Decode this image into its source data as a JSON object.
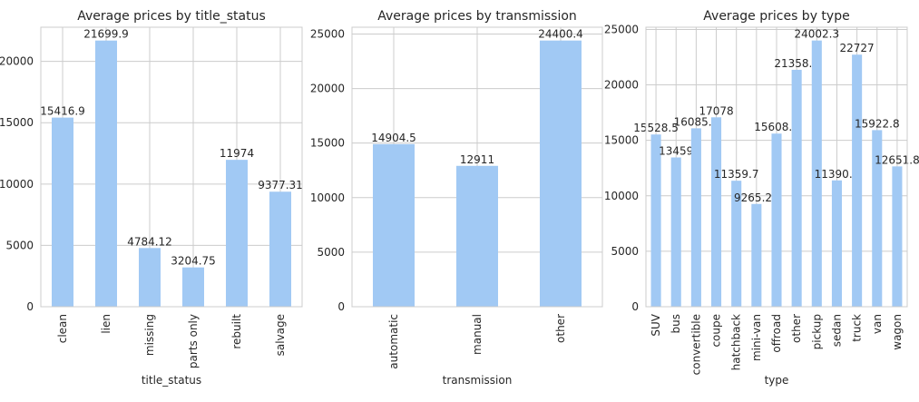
{
  "colors": {
    "bar": "#a1c9f4",
    "grid": "#cccccc",
    "spine": "#cccccc",
    "text": "#262626"
  },
  "chart_data": [
    {
      "type": "bar",
      "title": "Average prices by title_status",
      "xlabel": "title_status",
      "ylabel": "",
      "grid": true,
      "categories": [
        "clean",
        "lien",
        "missing",
        "parts only",
        "rebuilt",
        "salvage"
      ],
      "values": [
        15416.9,
        21699.9,
        4784.12,
        3204.75,
        11974,
        9377.31
      ],
      "value_labels": [
        "15416.9",
        "21699.9",
        "4784.12",
        "3204.75",
        "11974",
        "9377.31"
      ],
      "ylim": [
        0,
        22785
      ],
      "yticks": [
        0,
        5000,
        10000,
        15000,
        20000
      ]
    },
    {
      "type": "bar",
      "title": "Average prices by transmission",
      "xlabel": "transmission",
      "ylabel": "",
      "grid": true,
      "categories": [
        "automatic",
        "manual",
        "other"
      ],
      "values": [
        14904.5,
        12911,
        24400.4
      ],
      "value_labels": [
        "14904.5",
        "12911",
        "24400.4"
      ],
      "ylim": [
        0,
        25620
      ],
      "yticks": [
        0,
        5000,
        10000,
        15000,
        20000,
        25000
      ]
    },
    {
      "type": "bar",
      "title": "Average prices by type",
      "xlabel": "type",
      "ylabel": "",
      "grid": true,
      "categories": [
        "SUV",
        "bus",
        "convertible",
        "coupe",
        "hatchback",
        "mini-van",
        "offroad",
        "other",
        "pickup",
        "sedan",
        "truck",
        "van",
        "wagon"
      ],
      "values": [
        15528.5,
        13459,
        16085.6,
        17078,
        11359.7,
        9265.21,
        15608.5,
        21358.5,
        24002.3,
        11390.9,
        22727,
        15922.8,
        12651.8
      ],
      "value_labels": [
        "15528.5",
        "13459",
        "16085.6",
        "17078",
        "11359.7",
        "9265.21",
        "15608.5",
        "21358.5",
        "24002.3",
        "11390.9",
        "22727",
        "15922.8",
        "12651.8"
      ],
      "ylim": [
        0,
        25200
      ],
      "yticks": [
        0,
        5000,
        10000,
        15000,
        20000,
        25000
      ]
    }
  ]
}
